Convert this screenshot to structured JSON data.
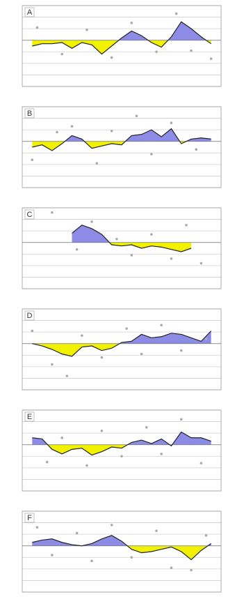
{
  "chart_data": [
    {
      "type": "area",
      "title": "A",
      "x": [
        1,
        2,
        3,
        4,
        5,
        6,
        7,
        8,
        9,
        10,
        11,
        12,
        13,
        14,
        15,
        16,
        17,
        18,
        19
      ],
      "values": [
        -0.5,
        -0.3,
        -0.3,
        -0.2,
        -0.7,
        -0.2,
        -0.4,
        -1.2,
        -0.5,
        0.2,
        0.8,
        0.4,
        -0.2,
        -0.6,
        0.3,
        1.6,
        1.0,
        0.3,
        -0.3
      ],
      "points": {
        "x": [
          1.5,
          4,
          6.5,
          9,
          11,
          13.5,
          15.5,
          17,
          19
        ],
        "values": [
          1.1,
          -1.2,
          0.9,
          -1.5,
          1.5,
          -1.0,
          2.3,
          -0.9,
          -1.6
        ]
      },
      "xlim": [
        0,
        20
      ],
      "ylim": [
        -4,
        3
      ],
      "yticks": [
        -4,
        -3,
        -2,
        -1,
        0,
        1,
        2,
        3
      ],
      "grid": true,
      "above_color": "#8c8ce6",
      "below_color": "#f2f200"
    },
    {
      "type": "area",
      "title": "B",
      "x": [
        1,
        2,
        3,
        4,
        5,
        6,
        7,
        8,
        9,
        10,
        11,
        12,
        13,
        14,
        15,
        16,
        17,
        18,
        19
      ],
      "values": [
        -0.5,
        -0.3,
        -0.8,
        -0.2,
        0.5,
        0.2,
        -0.6,
        -0.4,
        -0.2,
        -0.3,
        0.5,
        0.6,
        1.0,
        0.4,
        1.1,
        -0.2,
        0.2,
        0.3,
        0.2
      ],
      "points": {
        "x": [
          1,
          3.5,
          5,
          7.5,
          9,
          11.5,
          13,
          15,
          17.5
        ],
        "values": [
          -1.6,
          0.8,
          1.3,
          -1.9,
          0.9,
          2.2,
          -1.1,
          1.6,
          -0.7
        ]
      },
      "xlim": [
        0,
        20
      ],
      "ylim": [
        -4,
        3
      ],
      "yticks": [
        -4,
        -3,
        -2,
        -1,
        0,
        1,
        2,
        3
      ],
      "grid": true,
      "above_color": "#8c8ce6",
      "below_color": "#f2f200"
    },
    {
      "type": "area",
      "title": "C",
      "x": [
        5,
        6,
        7,
        8,
        9,
        10,
        11,
        12,
        13,
        14,
        15,
        16,
        17
      ],
      "values": [
        0.8,
        1.5,
        1.2,
        0.7,
        -0.2,
        -0.3,
        -0.2,
        -0.5,
        -0.3,
        -0.4,
        -0.6,
        -0.8,
        -0.5
      ],
      "points": {
        "x": [
          3,
          5.5,
          7,
          9.5,
          11,
          13,
          15,
          16.5,
          18
        ],
        "values": [
          2.6,
          -0.6,
          1.8,
          0.3,
          -1.1,
          0.7,
          -1.4,
          1.5,
          -1.8
        ]
      },
      "xlim": [
        0,
        20
      ],
      "ylim": [
        -4,
        3
      ],
      "yticks": [
        -4,
        -3,
        -2,
        -1,
        0,
        1,
        2,
        3
      ],
      "grid": true,
      "above_color": "#8c8ce6",
      "below_color": "#f2f200"
    },
    {
      "type": "area",
      "title": "D",
      "x": [
        1,
        2,
        3,
        4,
        5,
        6,
        7,
        8,
        9,
        10,
        11,
        12,
        13,
        14,
        15,
        16,
        17,
        18,
        19
      ],
      "values": [
        0,
        -0.2,
        -0.5,
        -0.9,
        -1.1,
        -0.3,
        -0.2,
        -0.6,
        -0.4,
        0.1,
        0.2,
        0.8,
        0.5,
        0.6,
        0.9,
        0.8,
        0.5,
        0.2,
        1.1
      ],
      "points": {
        "x": [
          1,
          3,
          4.5,
          6,
          8,
          10.5,
          12,
          14,
          16,
          18.5
        ],
        "values": [
          1.1,
          -1.8,
          -2.8,
          0.7,
          -1.2,
          1.3,
          -0.9,
          1.6,
          -0.6,
          0.4
        ]
      },
      "xlim": [
        0,
        20
      ],
      "ylim": [
        -4,
        3
      ],
      "yticks": [
        -4,
        -3,
        -2,
        -1,
        0,
        1,
        2,
        3
      ],
      "grid": true,
      "above_color": "#8c8ce6",
      "below_color": "#f2f200"
    },
    {
      "type": "area",
      "title": "E",
      "x": [
        1,
        2,
        3,
        4,
        5,
        6,
        7,
        8,
        9,
        10,
        11,
        12,
        13,
        14,
        15,
        16,
        17,
        18,
        19
      ],
      "values": [
        0.6,
        0.5,
        -0.4,
        -0.8,
        -0.4,
        -0.3,
        -0.9,
        -0.6,
        -0.2,
        -0.3,
        0.2,
        0.4,
        0.1,
        0.5,
        -0.1,
        1.1,
        0.6,
        0.6,
        0.3
      ],
      "points": {
        "x": [
          1,
          2.5,
          4,
          6.5,
          8,
          10,
          12.5,
          14,
          16,
          18
        ],
        "values": [
          2.1,
          -1.5,
          0.6,
          -1.8,
          1.2,
          -1.0,
          1.5,
          -0.8,
          2.2,
          -1.6
        ]
      },
      "xlim": [
        0,
        20
      ],
      "ylim": [
        -4,
        3
      ],
      "yticks": [
        -4,
        -3,
        -2,
        -1,
        0,
        1,
        2,
        3
      ],
      "grid": true,
      "above_color": "#8c8ce6",
      "below_color": "#f2f200"
    },
    {
      "type": "area",
      "title": "F",
      "x": [
        1,
        2,
        3,
        4,
        5,
        6,
        7,
        8,
        9,
        10,
        11,
        12,
        13,
        14,
        15,
        16,
        17,
        18,
        19
      ],
      "values": [
        0.3,
        0.5,
        0.6,
        0.3,
        0.1,
        0.0,
        0.2,
        0.6,
        0.9,
        0.4,
        -0.3,
        -0.6,
        -0.5,
        -0.3,
        -0.1,
        -0.5,
        -1.2,
        -0.4,
        0.2
      ],
      "points": {
        "x": [
          1.5,
          3,
          5.5,
          7,
          9,
          11,
          13.5,
          15,
          17,
          18.5
        ],
        "values": [
          1.6,
          -0.8,
          1.1,
          -1.3,
          1.8,
          -1.0,
          1.3,
          -1.9,
          -2.1,
          0.9
        ]
      },
      "xlim": [
        0,
        20
      ],
      "ylim": [
        -4,
        3
      ],
      "yticks": [
        -4,
        -3,
        -2,
        -1,
        0,
        1,
        2,
        3
      ],
      "grid": true,
      "above_color": "#8c8ce6",
      "below_color": "#f2f200"
    }
  ]
}
